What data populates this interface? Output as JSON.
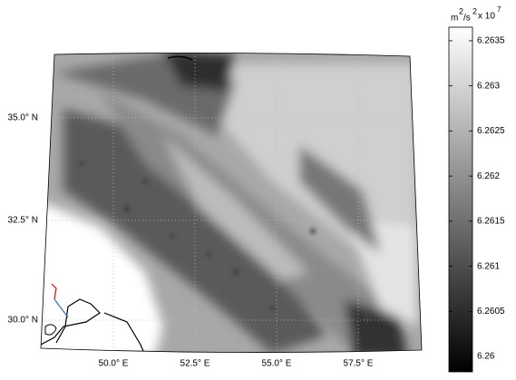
{
  "map": {
    "lat_labels": [
      "35.0° N",
      "32.5° N",
      "30.0° N"
    ],
    "lon_labels": [
      "50.0° E",
      "52.5° E",
      "55.0° E",
      "57.5° E"
    ]
  },
  "colorbar": {
    "units": {
      "base": "m",
      "exp1": "2",
      "mid": "/s",
      "exp2": "2",
      "scale": "x 10",
      "exp3": "7"
    },
    "lim": [
      6.25983,
      6.26365
    ],
    "ticks": [
      6.26,
      6.2605,
      6.261,
      6.2615,
      6.262,
      6.2625,
      6.263,
      6.2635
    ]
  }
}
